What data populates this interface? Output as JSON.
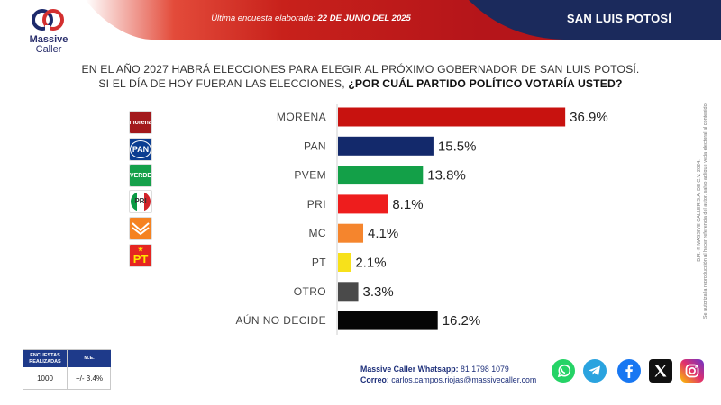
{
  "header": {
    "date_label": "Última encuesta elaborada:",
    "date_value": "22 DE JUNIO DEL 2025",
    "region": "SAN LUIS POTOSÍ"
  },
  "brand": {
    "name_line1": "Massive",
    "name_line2": "Caller"
  },
  "question": {
    "line1": "EN EL AÑO 2027 HABRÁ ELECCIONES PARA ELEGIR AL PRÓXIMO GOBERNADOR DE SAN LUIS POTOSÍ.",
    "line2_plain": "SI EL DÍA DE HOY FUERAN LAS ELECCIONES, ",
    "line2_bold": "¿POR CUÁL PARTIDO POLÍTICO VOTARÍA USTED?"
  },
  "chart_data": {
    "type": "bar",
    "orientation": "horizontal",
    "categories": [
      "MORENA",
      "PAN",
      "PVEM",
      "PRI",
      "MC",
      "PT",
      "OTRO",
      "AÚN NO DECIDE"
    ],
    "values": [
      36.9,
      15.5,
      13.8,
      8.1,
      4.1,
      2.1,
      3.3,
      16.2
    ],
    "value_labels": [
      "36.9%",
      "15.5%",
      "13.8%",
      "8.1%",
      "4.1%",
      "2.1%",
      "3.3%",
      "16.2%"
    ],
    "colors": [
      "#c8120f",
      "#13296b",
      "#13a048",
      "#ee1d1d",
      "#f5852d",
      "#f7e11b",
      "#4a4a4a",
      "#050505"
    ],
    "xlim": [
      0,
      40
    ],
    "grid": false,
    "title": "",
    "xlabel": "",
    "ylabel": ""
  },
  "party_logos": [
    {
      "icon": "morena-logo",
      "text": "morena",
      "bg": "#a3191c",
      "fg": "#ffffff"
    },
    {
      "icon": "pan-logo",
      "text": "PAN",
      "bg": "#0b3d91",
      "fg": "#ffffff"
    },
    {
      "icon": "pvem-logo",
      "text": "VERDE",
      "bg": "#15a04a",
      "fg": "#ffffff"
    },
    {
      "icon": "pri-logo",
      "text": "PRI",
      "bg": "#ffffff",
      "fg": "#d2232a"
    },
    {
      "icon": "mc-logo",
      "text": "",
      "bg": "#f58220",
      "fg": "#ffffff"
    },
    {
      "icon": "pt-logo",
      "text": "PT",
      "bg": "#e52521",
      "fg": "#ffe600"
    }
  ],
  "side_disclaimer": {
    "line1": "D.R. © MASSIVE CALLER S.A. DE C.V. 2024.",
    "line2": "Se autoriza la reproducción al hacer referencia del autor, salvo aplique veda electoral al contenido."
  },
  "survey": {
    "col1_header": "ENCUESTAS REALIZADAS",
    "col2_header": "M.E.",
    "col1_value": "1000",
    "col2_value": "+/- 3.4%"
  },
  "contact": {
    "whatsapp_label": "Massive Caller Whatsapp:",
    "whatsapp_value": "81 1798 1079",
    "email_label": "Correo:",
    "email_value": "carlos.campos.riojas@massivecaller.com"
  },
  "social": [
    {
      "icon": "whatsapp-icon",
      "color": "#25d366"
    },
    {
      "icon": "telegram-icon",
      "color": "#2aa3df"
    },
    {
      "icon": "facebook-icon",
      "color": "#1877f2"
    },
    {
      "icon": "x-icon",
      "color": "#111111"
    },
    {
      "icon": "instagram-icon",
      "color": "#d6249f"
    }
  ]
}
